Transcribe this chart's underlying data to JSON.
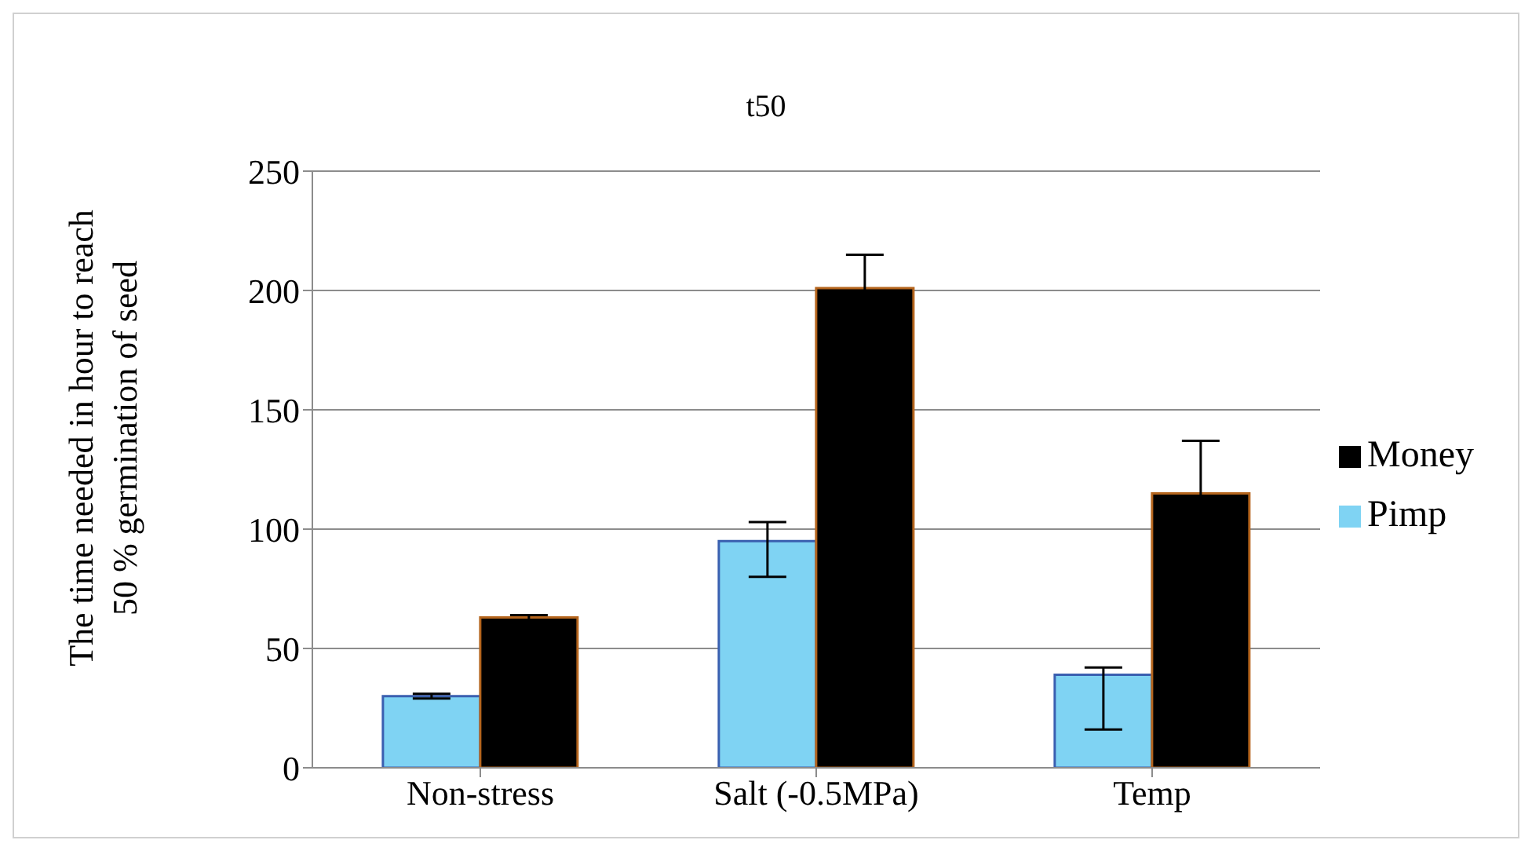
{
  "chart_data": {
    "type": "bar",
    "title": "t50",
    "ylabel": "The time needed in hour to reach 50 % germination of seed",
    "categories": [
      "Non-stress",
      "Salt (-0.5MPa)",
      "Temp"
    ],
    "series": [
      {
        "name": "Pimp",
        "color": "#7fd3f3",
        "values": [
          30,
          95,
          39
        ],
        "errors": [
          1,
          [
            80,
            103
          ],
          [
            16,
            42
          ]
        ]
      },
      {
        "name": "Money",
        "color": "#000000",
        "values": [
          63,
          201,
          115
        ],
        "errors": [
          1,
          14,
          22
        ]
      }
    ],
    "ylim": [
      0,
      250
    ],
    "yticks": [
      0,
      50,
      100,
      150,
      200,
      250
    ],
    "grid": "y",
    "legend": "right"
  }
}
